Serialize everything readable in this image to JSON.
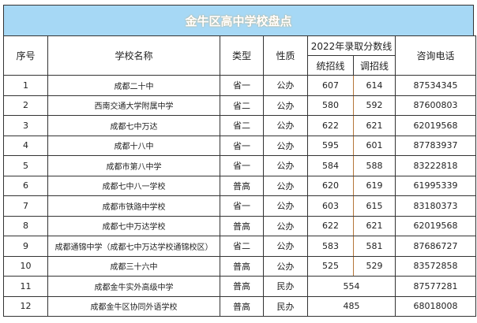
{
  "title": "金牛区高中学校盘点",
  "headers": {
    "index": "序号",
    "name": "学校名称",
    "type": "类型",
    "nature": "性质",
    "score_group": "2022年录取分数线",
    "unified": "统招线",
    "adjusted": "调招线",
    "phone": "咨询电话"
  },
  "rows": [
    {
      "index": "1",
      "name": "成都二十中",
      "type": "省一",
      "nature": "公办",
      "unified": "607",
      "adjusted": "614",
      "phone": "87534345"
    },
    {
      "index": "2",
      "name": "西南交通大学附属中学",
      "type": "省二",
      "nature": "公办",
      "unified": "580",
      "adjusted": "592",
      "phone": "87600803"
    },
    {
      "index": "3",
      "name": "成都七中万达",
      "type": "省二",
      "nature": "公办",
      "unified": "622",
      "adjusted": "621",
      "phone": "62019568"
    },
    {
      "index": "4",
      "name": "成都十八中",
      "type": "省一",
      "nature": "公办",
      "unified": "595",
      "adjusted": "601",
      "phone": "87783937"
    },
    {
      "index": "5",
      "name": "成都市第八中学",
      "type": "省一",
      "nature": "公办",
      "unified": "584",
      "adjusted": "588",
      "phone": "83222818"
    },
    {
      "index": "6",
      "name": "成都七中八一学校",
      "type": "普高",
      "nature": "公办",
      "unified": "620",
      "adjusted": "619",
      "phone": "61995339"
    },
    {
      "index": "7",
      "name": "成都市铁路中学校",
      "type": "省一",
      "nature": "公办",
      "unified": "603",
      "adjusted": "615",
      "phone": "83180373"
    },
    {
      "index": "8",
      "name": "成都七中万达学校",
      "type": "普高",
      "nature": "公办",
      "unified": "622",
      "adjusted": "621",
      "phone": "62019568"
    },
    {
      "index": "9",
      "name": "成都通锦中学（成都七中万达学校通锦校区）",
      "type": "省二",
      "nature": "公办",
      "unified": "583",
      "adjusted": "581",
      "phone": "87686727"
    },
    {
      "index": "10",
      "name": "成都三十六中",
      "type": "普高",
      "nature": "公办",
      "unified": "525",
      "adjusted": "529",
      "phone": "83572858"
    },
    {
      "index": "11",
      "name": "成都金牛实外高级中学",
      "type": "普高",
      "nature": "民办",
      "score": "554",
      "phone": "87577281"
    },
    {
      "index": "12",
      "name": "成都金牛区协同外语学校",
      "type": "普高",
      "nature": "民办",
      "score": "485",
      "phone": "68018008"
    }
  ]
}
